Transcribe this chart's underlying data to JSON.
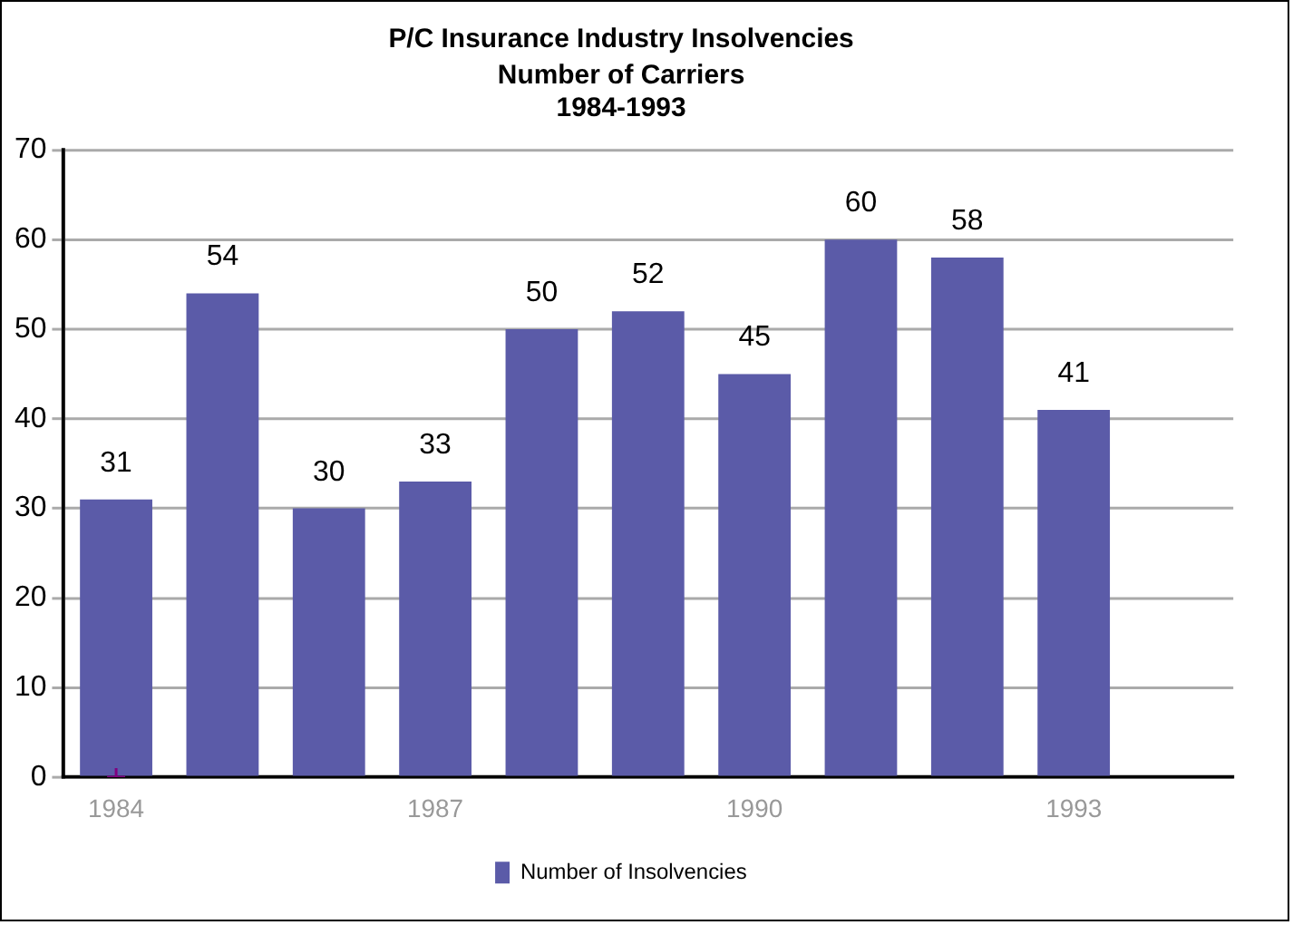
{
  "chart_data": {
    "type": "bar",
    "title": "P/C Insurance Industry Insolvencies",
    "subtitle": "Number of Carriers\n1984-1993",
    "categories": [
      "1984",
      null,
      null,
      "1987",
      null,
      null,
      "1990",
      null,
      null,
      "1993",
      null
    ],
    "series": [
      {
        "name": "Number of Insolvencies",
        "color": "#5b5ba8",
        "values": [
          31,
          54,
          30,
          33,
          50,
          52,
          45,
          60,
          58,
          41,
          null
        ]
      },
      {
        "type": "scatter",
        "color": "#800080",
        "marker": "cross",
        "values": [
          0,
          null,
          null,
          null,
          null,
          null,
          null,
          null,
          null,
          null,
          null
        ],
        "data_labels": false
      }
    ],
    "data_labels": true,
    "ylim": [
      0,
      70
    ],
    "yticks": [
      0,
      10,
      20,
      30,
      40,
      50,
      60,
      70
    ],
    "grid": "y",
    "legend": "bottom"
  }
}
